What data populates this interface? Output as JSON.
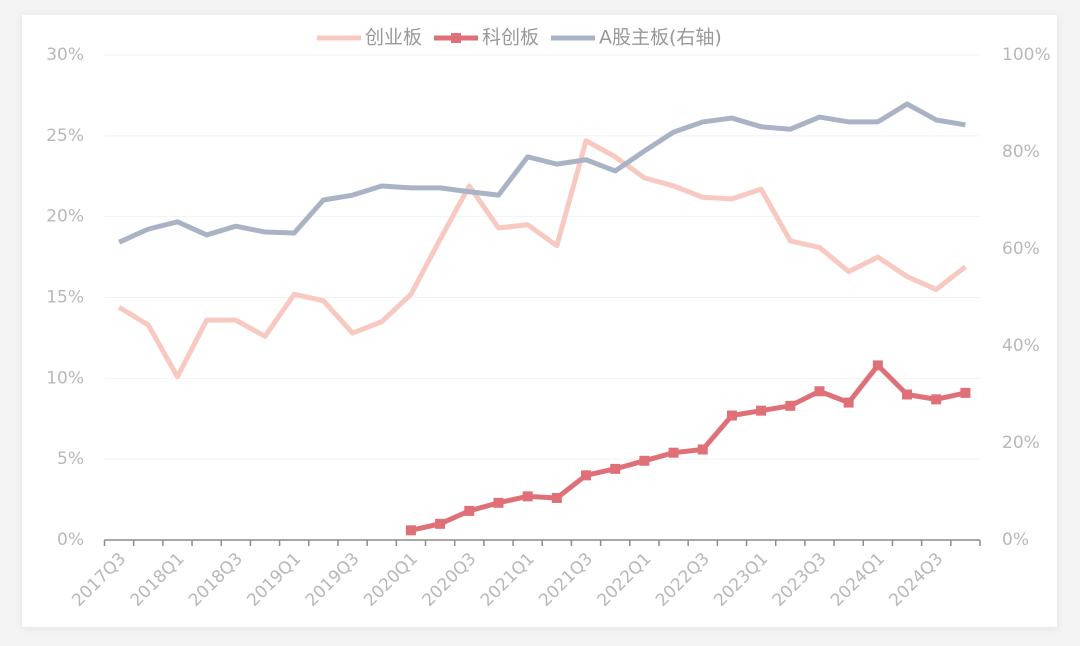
{
  "chart_data": {
    "type": "line",
    "categories": [
      "2017Q3",
      null,
      "2018Q1",
      null,
      "2018Q3",
      null,
      "2019Q1",
      null,
      "2019Q3",
      null,
      "2020Q1",
      null,
      "2020Q3",
      null,
      "2021Q1",
      null,
      "2021Q3",
      null,
      "2022Q1",
      null,
      "2022Q3",
      null,
      "2023Q1",
      null,
      "2023Q3",
      null,
      "2024Q1",
      null,
      "2024Q3",
      null
    ],
    "series": [
      {
        "name": "创业板",
        "color": "#f8c9c0",
        "values": [
          14.4,
          13.3,
          10.1,
          13.6,
          13.6,
          12.6,
          15.2,
          14.8,
          12.8,
          13.5,
          15.2,
          18.6,
          21.9,
          19.3,
          19.5,
          18.2,
          24.7,
          23.7,
          22.4,
          21.9,
          21.2,
          21.1,
          21.7,
          18.5,
          18.1,
          16.6,
          17.5,
          16.3,
          15.5,
          16.9
        ]
      },
      {
        "name": "科创板",
        "color": "#e07078",
        "marker": "square",
        "values": [
          null,
          null,
          null,
          null,
          null,
          null,
          null,
          null,
          null,
          null,
          0.6,
          1.0,
          1.8,
          2.3,
          2.7,
          2.6,
          4.0,
          4.4,
          4.9,
          5.4,
          5.6,
          7.7,
          8.0,
          8.3,
          9.2,
          8.5,
          10.8,
          9.0,
          8.7,
          9.1
        ]
      },
      {
        "name": "A股主板(右轴)",
        "color": "#aab3c6",
        "axis": "y2",
        "values": [
          61.4,
          64.1,
          65.6,
          62.9,
          64.7,
          63.5,
          63.3,
          70.1,
          71.1,
          73.0,
          72.6,
          72.6,
          71.8,
          71.1,
          79.0,
          77.5,
          78.4,
          76.1,
          80.2,
          84.1,
          86.2,
          87.0,
          85.2,
          84.7,
          87.2,
          86.2,
          86.2,
          89.9,
          86.6,
          85.6
        ]
      }
    ],
    "ylim": [
      0,
      30
    ],
    "yticks": [
      {
        "value": 0,
        "label": "0%"
      },
      {
        "value": 5,
        "label": "5%"
      },
      {
        "value": 10,
        "label": "10%"
      },
      {
        "value": 15,
        "label": "15%"
      },
      {
        "value": 20,
        "label": "20%"
      },
      {
        "value": 25,
        "label": "25%"
      },
      {
        "value": 30,
        "label": "30%"
      }
    ],
    "y2lim": [
      0,
      100
    ],
    "y2ticks": [
      {
        "value": 0,
        "label": "0%"
      },
      {
        "value": 20,
        "label": "20%"
      },
      {
        "value": 40,
        "label": "40%"
      },
      {
        "value": 60,
        "label": "60%"
      },
      {
        "value": 80,
        "label": "80%"
      },
      {
        "value": 100,
        "label": "100%"
      }
    ],
    "grid": true,
    "legend": "top"
  }
}
